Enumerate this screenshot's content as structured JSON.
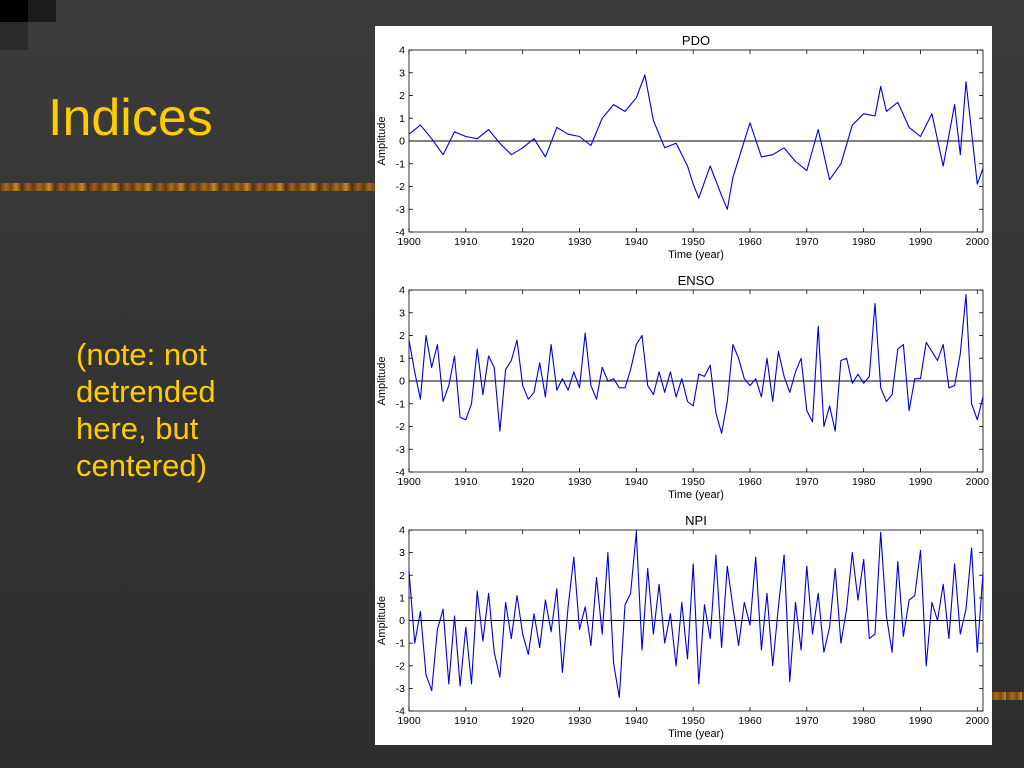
{
  "slide": {
    "title": "Indices",
    "note_lines": [
      "(note: not",
      "detrended",
      "here, but",
      "centered)"
    ]
  },
  "colors": {
    "background": "#333333",
    "title": "#FFCC00",
    "note": "#FFCC00",
    "series_line": "#0000DD",
    "zero_line": "#000000"
  },
  "chart_data": [
    {
      "type": "line",
      "title": "PDO",
      "xlabel": "Time (year)",
      "ylabel": "Amplitude",
      "xlim": [
        1900,
        2001
      ],
      "ylim": [
        -4,
        4
      ],
      "xticks": [
        1900,
        1910,
        1920,
        1930,
        1940,
        1950,
        1960,
        1970,
        1980,
        1990,
        2000
      ],
      "yticks": [
        -4,
        -3,
        -2,
        -1,
        0,
        1,
        2,
        3,
        4
      ],
      "zero_line": true,
      "series": [
        {
          "x": [
            1900,
            1902,
            1904,
            1906,
            1908,
            1910,
            1912,
            1914,
            1916,
            1918,
            1920,
            1922,
            1924,
            1926,
            1928,
            1930,
            1932,
            1934,
            1936,
            1938,
            1940,
            1941.5,
            1943,
            1945,
            1947,
            1949,
            1950,
            1951,
            1953,
            1955,
            1956,
            1957,
            1958,
            1960,
            1962,
            1964,
            1966,
            1968,
            1970,
            1972,
            1974,
            1976,
            1978,
            1980,
            1982,
            1983,
            1984,
            1986,
            1988,
            1990,
            1992,
            1994,
            1996,
            1997,
            1998,
            1999,
            2000,
            2001
          ],
          "values": [
            0.3,
            0.7,
            0.1,
            -0.6,
            0.4,
            0.2,
            0.1,
            0.5,
            -0.1,
            -0.6,
            -0.3,
            0.1,
            -0.7,
            0.6,
            0.3,
            0.2,
            -0.2,
            1.0,
            1.6,
            1.3,
            1.9,
            2.9,
            0.9,
            -0.3,
            -0.1,
            -1.1,
            -1.9,
            -2.5,
            -1.1,
            -2.4,
            -3.0,
            -1.6,
            -0.8,
            0.8,
            -0.7,
            -0.6,
            -0.3,
            -0.9,
            -1.3,
            0.5,
            -1.7,
            -1.0,
            0.7,
            1.2,
            1.1,
            2.4,
            1.3,
            1.7,
            0.6,
            0.2,
            1.2,
            -1.1,
            1.6,
            -0.6,
            2.6,
            0.4,
            -1.9,
            -1.2
          ]
        }
      ]
    },
    {
      "type": "line",
      "title": "ENSO",
      "xlabel": "Time (year)",
      "ylabel": "Amplitude",
      "xlim": [
        1900,
        2001
      ],
      "ylim": [
        -4,
        4
      ],
      "xticks": [
        1900,
        1910,
        1920,
        1930,
        1940,
        1950,
        1960,
        1970,
        1980,
        1990,
        2000
      ],
      "yticks": [
        -4,
        -3,
        -2,
        -1,
        0,
        1,
        2,
        3,
        4
      ],
      "zero_line": true,
      "series": [
        {
          "x": [
            1900,
            1901,
            1902,
            1903,
            1904,
            1905,
            1906,
            1907,
            1908,
            1909,
            1910,
            1911,
            1912,
            1913,
            1914,
            1915,
            1916,
            1917,
            1918,
            1919,
            1920,
            1921,
            1922,
            1923,
            1924,
            1925,
            1926,
            1927,
            1928,
            1929,
            1930,
            1931,
            1932,
            1933,
            1934,
            1935,
            1936,
            1937,
            1938,
            1939,
            1940,
            1941,
            1942,
            1943,
            1944,
            1945,
            1946,
            1947,
            1948,
            1949,
            1950,
            1951,
            1952,
            1953,
            1954,
            1955,
            1956,
            1957,
            1958,
            1959,
            1960,
            1961,
            1962,
            1963,
            1964,
            1965,
            1966,
            1967,
            1968,
            1969,
            1970,
            1971,
            1972,
            1973,
            1974,
            1975,
            1976,
            1977,
            1978,
            1979,
            1980,
            1981,
            1982,
            1983,
            1984,
            1985,
            1986,
            1987,
            1988,
            1989,
            1990,
            1991,
            1992,
            1993,
            1994,
            1995,
            1996,
            1997,
            1998,
            1999,
            2000,
            2001
          ],
          "values": [
            1.8,
            0.4,
            -0.8,
            2.0,
            0.6,
            1.6,
            -0.9,
            -0.2,
            1.1,
            -1.6,
            -1.7,
            -1.0,
            1.4,
            -0.6,
            1.1,
            0.6,
            -2.2,
            0.5,
            0.9,
            1.8,
            -0.2,
            -0.8,
            -0.5,
            0.8,
            -0.7,
            1.6,
            -0.4,
            0.1,
            -0.4,
            0.4,
            -0.3,
            2.1,
            -0.2,
            -0.8,
            0.6,
            0.0,
            0.1,
            -0.3,
            -0.3,
            0.5,
            1.6,
            2.0,
            -0.2,
            -0.6,
            0.4,
            -0.5,
            0.4,
            -0.7,
            0.1,
            -0.9,
            -1.1,
            0.3,
            0.2,
            0.7,
            -1.4,
            -2.3,
            -0.9,
            1.6,
            1.0,
            0.1,
            -0.2,
            0.1,
            -0.7,
            1.0,
            -0.9,
            1.3,
            0.2,
            -0.5,
            0.4,
            1.0,
            -1.3,
            -1.8,
            2.4,
            -2.0,
            -1.1,
            -2.2,
            0.9,
            1.0,
            -0.1,
            0.3,
            -0.1,
            0.2,
            3.4,
            -0.3,
            -0.9,
            -0.6,
            1.4,
            1.6,
            -1.3,
            0.1,
            0.1,
            1.7,
            1.3,
            0.9,
            1.6,
            -0.3,
            -0.2,
            1.2,
            3.8,
            -1.0,
            -1.7,
            -0.7
          ]
        }
      ]
    },
    {
      "type": "line",
      "title": "NPI",
      "xlabel": "Time (year)",
      "ylabel": "Amplitude",
      "xlim": [
        1900,
        2001
      ],
      "ylim": [
        -4,
        4
      ],
      "xticks": [
        1900,
        1910,
        1920,
        1930,
        1940,
        1950,
        1960,
        1970,
        1980,
        1990,
        2000
      ],
      "yticks": [
        -4,
        -3,
        -2,
        -1,
        0,
        1,
        2,
        3,
        4
      ],
      "zero_line": true,
      "series": [
        {
          "x": [
            1900,
            1901,
            1902,
            1903,
            1904,
            1905,
            1906,
            1907,
            1908,
            1909,
            1910,
            1911,
            1912,
            1913,
            1914,
            1915,
            1916,
            1917,
            1918,
            1919,
            1920,
            1921,
            1922,
            1923,
            1924,
            1925,
            1926,
            1927,
            1928,
            1929,
            1930,
            1931,
            1932,
            1933,
            1934,
            1935,
            1936,
            1937,
            1938,
            1939,
            1940,
            1941,
            1942,
            1943,
            1944,
            1945,
            1946,
            1947,
            1948,
            1949,
            1950,
            1951,
            1952,
            1953,
            1954,
            1955,
            1956,
            1957,
            1958,
            1959,
            1960,
            1961,
            1962,
            1963,
            1964,
            1965,
            1966,
            1967,
            1968,
            1969,
            1970,
            1971,
            1972,
            1973,
            1974,
            1975,
            1976,
            1977,
            1978,
            1979,
            1980,
            1981,
            1982,
            1983,
            1984,
            1985,
            1986,
            1987,
            1988,
            1989,
            1990,
            1991,
            1992,
            1993,
            1994,
            1995,
            1996,
            1997,
            1998,
            1999,
            2000,
            2001
          ],
          "values": [
            2.2,
            -1.0,
            0.4,
            -2.4,
            -3.1,
            -0.4,
            0.5,
            -2.8,
            0.2,
            -2.9,
            -0.3,
            -2.8,
            1.3,
            -0.9,
            1.2,
            -1.4,
            -2.5,
            0.8,
            -0.8,
            1.1,
            -0.6,
            -1.5,
            0.3,
            -1.2,
            0.9,
            -0.5,
            1.4,
            -2.3,
            0.6,
            2.8,
            -0.4,
            0.6,
            -1.1,
            1.9,
            -0.6,
            3.0,
            -1.9,
            -3.4,
            0.7,
            1.2,
            3.9,
            -1.3,
            2.3,
            -0.6,
            1.6,
            -1.0,
            0.3,
            -2.0,
            0.8,
            -1.7,
            2.5,
            -2.8,
            0.7,
            -0.8,
            2.9,
            -1.2,
            2.4,
            0.6,
            -1.1,
            0.8,
            -0.2,
            2.8,
            -1.3,
            1.2,
            -2.0,
            0.6,
            2.9,
            -2.7,
            0.8,
            -1.3,
            2.4,
            -0.6,
            1.2,
            -1.4,
            -0.3,
            2.3,
            -1.0,
            0.5,
            3.0,
            0.9,
            2.7,
            -0.8,
            -0.6,
            3.9,
            0.2,
            -1.4,
            2.6,
            -0.7,
            0.9,
            1.1,
            3.1,
            -2.0,
            0.8,
            0.0,
            1.6,
            -0.8,
            2.5,
            -0.6,
            0.5,
            3.2,
            -1.4,
            2.1
          ]
        }
      ]
    }
  ]
}
